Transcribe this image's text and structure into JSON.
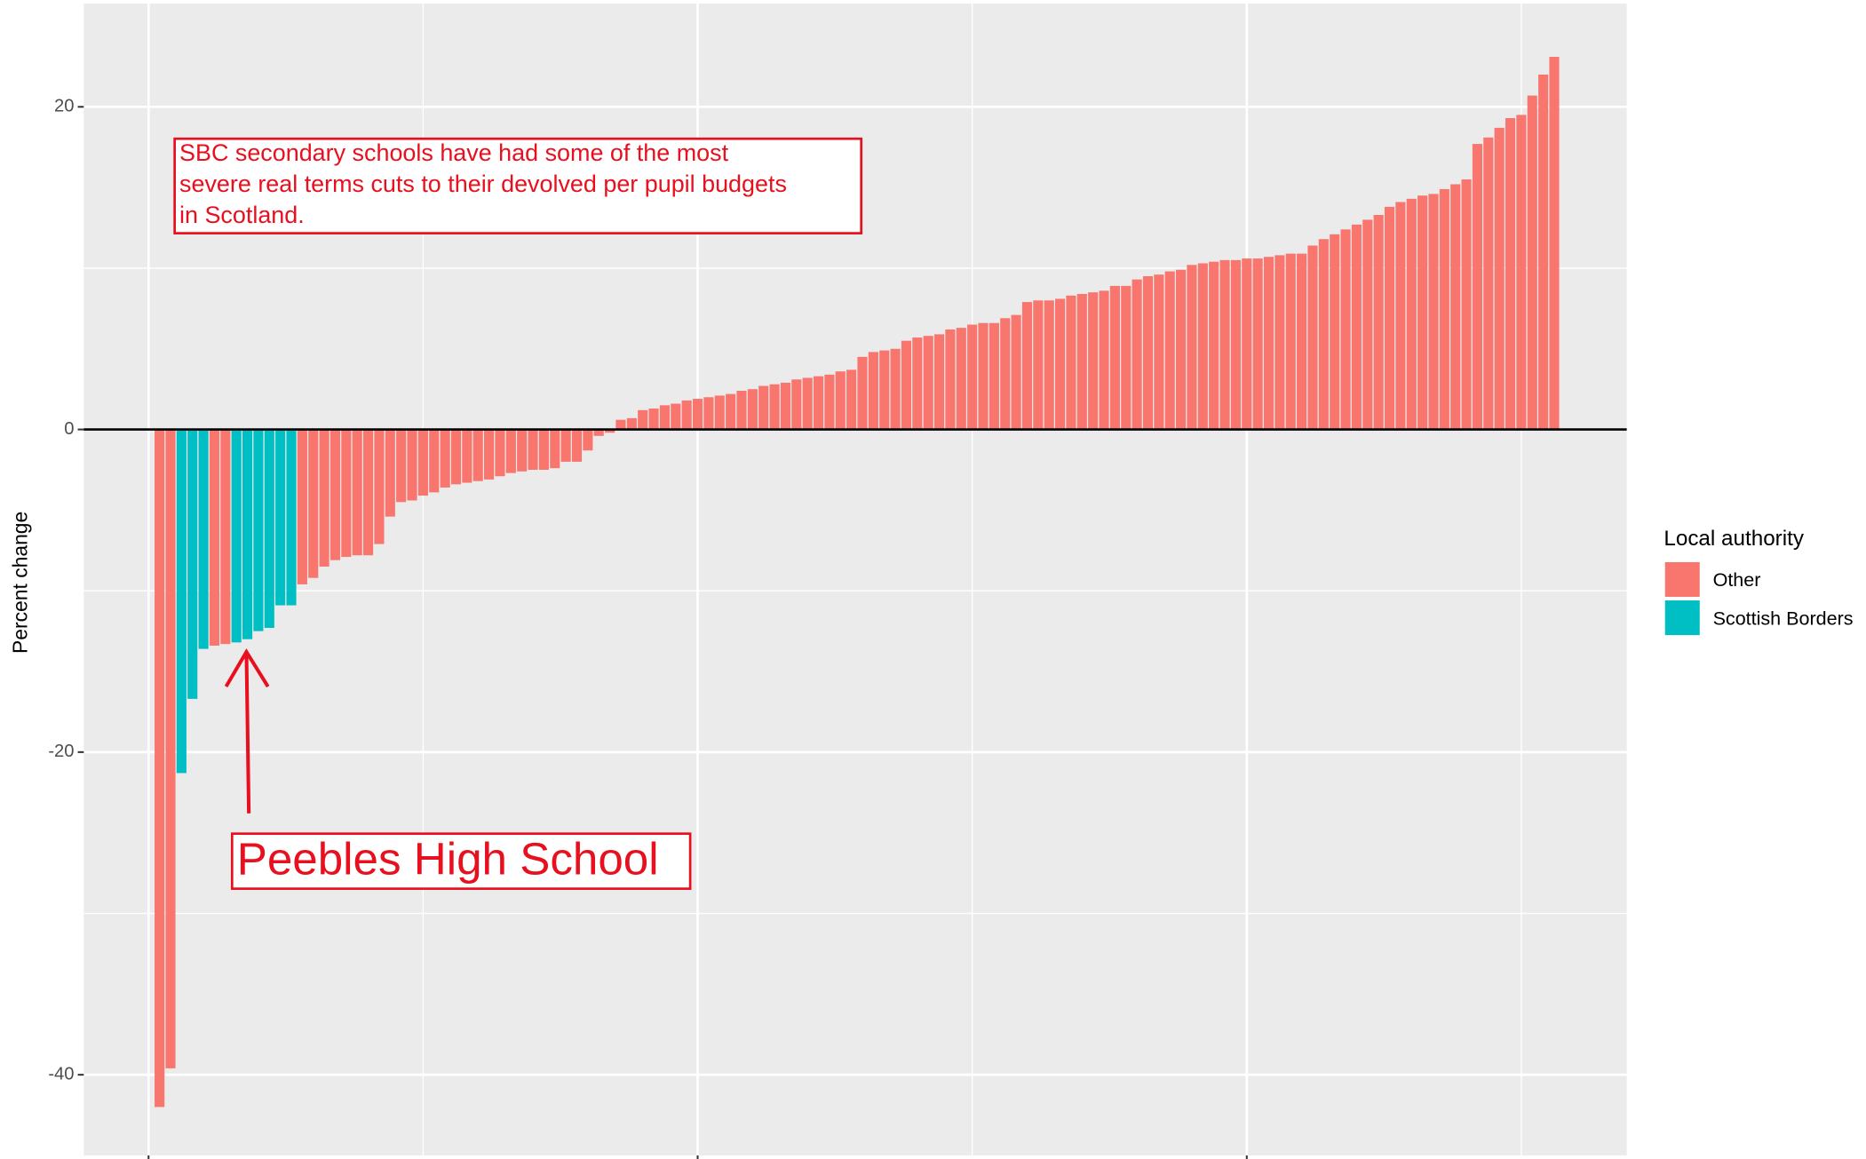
{
  "chart_data": {
    "type": "bar",
    "ylabel": "Percent change",
    "xlim": [
      -5.9,
      134.6
    ],
    "xticks": [
      0,
      50,
      100
    ],
    "ylim": [
      -45,
      26.4
    ],
    "yticks": [
      -40,
      -20,
      0,
      20
    ],
    "grid": true,
    "hline": 0,
    "legend_title": "Local authority",
    "legend_position": "right",
    "series": [
      {
        "name": "Other",
        "color": "#F8766D",
        "x": [
          1,
          2,
          6,
          7,
          14,
          15,
          16,
          17,
          18,
          19,
          20,
          21,
          22,
          23,
          24,
          25,
          26,
          27,
          28,
          29,
          30,
          31,
          32,
          33,
          34,
          35,
          36,
          37,
          38,
          39,
          40,
          41,
          42,
          43,
          44,
          45,
          46,
          47,
          48,
          49,
          50,
          51,
          52,
          53,
          54,
          55,
          56,
          57,
          58,
          59,
          60,
          61,
          62,
          63,
          64,
          65,
          66,
          67,
          68,
          69,
          70,
          71,
          72,
          73,
          74,
          75,
          76,
          77,
          78,
          79,
          80,
          81,
          82,
          83,
          84,
          85,
          86,
          87,
          88,
          89,
          90,
          91,
          92,
          93,
          94,
          95,
          96,
          97,
          98,
          99,
          100,
          101,
          102,
          103,
          104,
          105,
          106,
          107,
          108,
          109,
          110,
          111,
          112,
          113,
          114,
          115,
          116,
          117,
          118,
          119,
          120,
          121,
          122,
          123,
          124,
          125,
          126,
          127,
          128
        ],
        "values": [
          -42.0,
          -39.6,
          -13.4,
          -13.3,
          -9.6,
          -9.2,
          -8.5,
          -8.1,
          -7.9,
          -7.8,
          -7.8,
          -7.1,
          -5.4,
          -4.5,
          -4.4,
          -4.1,
          -3.9,
          -3.6,
          -3.4,
          -3.3,
          -3.2,
          -3.1,
          -2.9,
          -2.7,
          -2.6,
          -2.5,
          -2.5,
          -2.4,
          -2.0,
          -2.0,
          -1.3,
          -0.4,
          -0.2,
          0.6,
          0.7,
          1.2,
          1.3,
          1.5,
          1.6,
          1.8,
          1.9,
          2.0,
          2.1,
          2.2,
          2.4,
          2.5,
          2.7,
          2.8,
          2.9,
          3.1,
          3.2,
          3.3,
          3.4,
          3.6,
          3.7,
          4.5,
          4.8,
          4.9,
          5.0,
          5.5,
          5.7,
          5.8,
          5.9,
          6.2,
          6.3,
          6.5,
          6.6,
          6.6,
          6.9,
          7.1,
          7.9,
          8.0,
          8.0,
          8.1,
          8.3,
          8.4,
          8.5,
          8.6,
          8.9,
          8.9,
          9.3,
          9.5,
          9.6,
          9.8,
          9.9,
          10.2,
          10.3,
          10.4,
          10.5,
          10.5,
          10.6,
          10.6,
          10.7,
          10.8,
          10.9,
          10.9,
          11.4,
          11.8,
          12.1,
          12.4,
          12.7,
          13.0,
          13.3,
          13.8,
          14.1,
          14.3,
          14.5,
          14.6,
          14.9,
          15.2,
          15.5,
          17.7,
          18.1,
          18.7,
          19.3,
          19.5,
          20.7,
          22.0,
          23.1
        ]
      },
      {
        "name": "Scottish Borders",
        "color": "#00BFC4",
        "x": [
          3,
          4,
          5,
          8,
          9,
          10,
          11,
          12,
          13
        ],
        "values": [
          -21.3,
          -16.7,
          -13.6,
          -13.2,
          -13.0,
          -12.5,
          -12.3,
          -10.9,
          -10.9
        ]
      }
    ],
    "annotations": [
      {
        "lines": [
          "SBC secondary schools have had some of the most",
          "severe real terms cuts to their devolved per pupil budgets",
          "in Scotland."
        ],
        "color": "#e8101e"
      },
      {
        "text": "Peebles High School",
        "color": "#e8101e"
      }
    ]
  }
}
